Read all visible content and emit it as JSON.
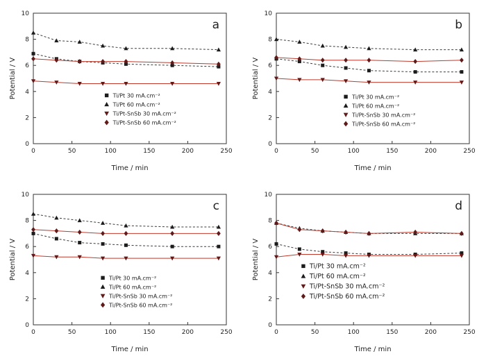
{
  "figure": {
    "background": "#ffffff",
    "axis_color": "#333333",
    "text_color": "#222222"
  },
  "chart_data": [
    {
      "type": "line",
      "panel_label": "a",
      "xlabel": "Time / min",
      "ylabel": "Potential / V",
      "xlim": [
        0,
        250
      ],
      "ylim": [
        0,
        10
      ],
      "xticks": [
        0,
        50,
        100,
        150,
        200,
        250
      ],
      "yticks": [
        0,
        2,
        4,
        6,
        8,
        10
      ],
      "x": [
        0,
        30,
        60,
        90,
        120,
        180,
        240
      ],
      "legend": {
        "fx": 0.38,
        "fy": 0.63,
        "font": 8,
        "position": "inside-lower-center"
      },
      "series": [
        {
          "name": "Ti/Pt 30 mA.cm⁻²",
          "marker": "square",
          "marker_color": "#1c1c1c",
          "line_color": "#3a3a3a",
          "line_style": "dashed",
          "values": [
            6.9,
            6.5,
            6.3,
            6.2,
            6.1,
            6.0,
            5.9
          ]
        },
        {
          "name": "Ti/Pt 60 mA.cm⁻²",
          "marker": "triangle-up",
          "marker_color": "#1c1c1c",
          "line_color": "#3a3a3a",
          "line_style": "dashed",
          "values": [
            8.5,
            7.9,
            7.8,
            7.5,
            7.3,
            7.3,
            7.2
          ]
        },
        {
          "name": "Ti/Pt-SnSb 30 mA.cm⁻²",
          "marker": "triangle-down",
          "marker_color": "#5f1a1a",
          "line_color": "#c0392b",
          "line_style": "solid",
          "values": [
            4.8,
            4.7,
            4.6,
            4.6,
            4.6,
            4.6,
            4.6
          ]
        },
        {
          "name": "Ti/Pt-SnSb 60 mA.cm⁻²",
          "marker": "diamond",
          "marker_color": "#5f1a1a",
          "line_color": "#c0392b",
          "line_style": "solid",
          "values": [
            6.5,
            6.4,
            6.3,
            6.3,
            6.3,
            6.2,
            6.1
          ]
        }
      ]
    },
    {
      "type": "line",
      "panel_label": "b",
      "xlabel": "Time / min",
      "ylabel": "Potential / V",
      "xlim": [
        0,
        250
      ],
      "ylim": [
        0,
        10
      ],
      "xticks": [
        0,
        50,
        100,
        150,
        200,
        250
      ],
      "yticks": [
        0,
        2,
        4,
        6,
        8,
        10
      ],
      "x": [
        0,
        30,
        60,
        90,
        120,
        180,
        240
      ],
      "legend": {
        "fx": 0.36,
        "fy": 0.64,
        "font": 8,
        "position": "inside-lower-center"
      },
      "series": [
        {
          "name": "Ti/Pt 30 mA.cm⁻²",
          "marker": "square",
          "marker_color": "#1c1c1c",
          "line_color": "#3a3a3a",
          "line_style": "dashed",
          "values": [
            6.5,
            6.3,
            6.0,
            5.8,
            5.6,
            5.5,
            5.5
          ]
        },
        {
          "name": "Ti/Pt 60 mA.cm⁻²",
          "marker": "triangle-up",
          "marker_color": "#1c1c1c",
          "line_color": "#3a3a3a",
          "line_style": "dashed",
          "values": [
            8.0,
            7.8,
            7.5,
            7.4,
            7.3,
            7.2,
            7.2
          ]
        },
        {
          "name": "Ti/Pt-SnSb 30 mA.cm⁻²",
          "marker": "triangle-down",
          "marker_color": "#5f1a1a",
          "line_color": "#c0392b",
          "line_style": "solid",
          "values": [
            5.0,
            4.9,
            4.9,
            4.8,
            4.7,
            4.7,
            4.7
          ]
        },
        {
          "name": "Ti/Pt-SnSb 60 mA.cm⁻²",
          "marker": "diamond",
          "marker_color": "#5f1a1a",
          "line_color": "#c0392b",
          "line_style": "solid",
          "values": [
            6.6,
            6.5,
            6.4,
            6.4,
            6.4,
            6.3,
            6.4
          ]
        }
      ]
    },
    {
      "type": "line",
      "panel_label": "c",
      "xlabel": "Time / min",
      "ylabel": "Potential / V",
      "xlim": [
        0,
        250
      ],
      "ylim": [
        0,
        10
      ],
      "xticks": [
        0,
        50,
        100,
        150,
        200,
        250
      ],
      "yticks": [
        0,
        2,
        4,
        6,
        8,
        10
      ],
      "x": [
        0,
        30,
        60,
        90,
        120,
        180,
        240
      ],
      "legend": {
        "fx": 0.36,
        "fy": 0.64,
        "font": 8,
        "position": "inside-lower-center"
      },
      "series": [
        {
          "name": "Ti/Pt 30 mA.cm⁻²",
          "marker": "square",
          "marker_color": "#1c1c1c",
          "line_color": "#3a3a3a",
          "line_style": "dashed",
          "values": [
            7.0,
            6.6,
            6.3,
            6.2,
            6.1,
            6.0,
            6.0
          ]
        },
        {
          "name": "Ti/Pt 60 mA.cm⁻²",
          "marker": "triangle-up",
          "marker_color": "#1c1c1c",
          "line_color": "#3a3a3a",
          "line_style": "dashed",
          "values": [
            8.5,
            8.2,
            8.0,
            7.8,
            7.6,
            7.5,
            7.5
          ]
        },
        {
          "name": "Ti/Pt-SnSb 30 mA.cm⁻²",
          "marker": "triangle-down",
          "marker_color": "#5f1a1a",
          "line_color": "#c0392b",
          "line_style": "solid",
          "values": [
            5.3,
            5.2,
            5.2,
            5.1,
            5.1,
            5.1,
            5.1
          ]
        },
        {
          "name": "Ti/Pt-SnSb 60 mA.cm⁻²",
          "marker": "diamond",
          "marker_color": "#5f1a1a",
          "line_color": "#c0392b",
          "line_style": "solid",
          "values": [
            7.3,
            7.2,
            7.1,
            7.0,
            7.0,
            7.0,
            7.0
          ]
        }
      ]
    },
    {
      "type": "line",
      "panel_label": "d",
      "xlabel": "Time / min",
      "ylabel": "Potential / V",
      "xlim": [
        0,
        250
      ],
      "ylim": [
        0,
        10
      ],
      "xticks": [
        0,
        50,
        100,
        150,
        200,
        250
      ],
      "yticks": [
        0,
        2,
        4,
        6,
        8,
        10
      ],
      "x": [
        0,
        30,
        60,
        90,
        120,
        180,
        240
      ],
      "legend": {
        "fx": 0.14,
        "fy": 0.55,
        "font": 9.5,
        "position": "inside-lower-center"
      },
      "series": [
        {
          "name": "Ti/Pt 30 mA.cm⁻²",
          "marker": "square",
          "marker_color": "#1c1c1c",
          "line_color": "#3a3a3a",
          "line_style": "dashed",
          "values": [
            6.2,
            5.8,
            5.6,
            5.5,
            5.4,
            5.4,
            5.5
          ]
        },
        {
          "name": "Ti/Pt 60 mA.cm⁻²",
          "marker": "triangle-up",
          "marker_color": "#1c1c1c",
          "line_color": "#3a3a3a",
          "line_style": "dashed",
          "values": [
            7.8,
            7.4,
            7.2,
            7.1,
            7.0,
            7.0,
            7.0
          ]
        },
        {
          "name": "Ti/Pt-SnSb 30 mA.cm⁻²",
          "marker": "triangle-down",
          "marker_color": "#5f1a1a",
          "line_color": "#c0392b",
          "line_style": "solid",
          "values": [
            5.2,
            5.4,
            5.4,
            5.3,
            5.3,
            5.3,
            5.3
          ]
        },
        {
          "name": "Ti/Pt-SnSb 60 mA.cm⁻²",
          "marker": "diamond",
          "marker_color": "#5f1a1a",
          "line_color": "#c0392b",
          "line_style": "solid",
          "values": [
            7.8,
            7.3,
            7.2,
            7.1,
            7.0,
            7.1,
            7.0
          ]
        }
      ]
    }
  ]
}
